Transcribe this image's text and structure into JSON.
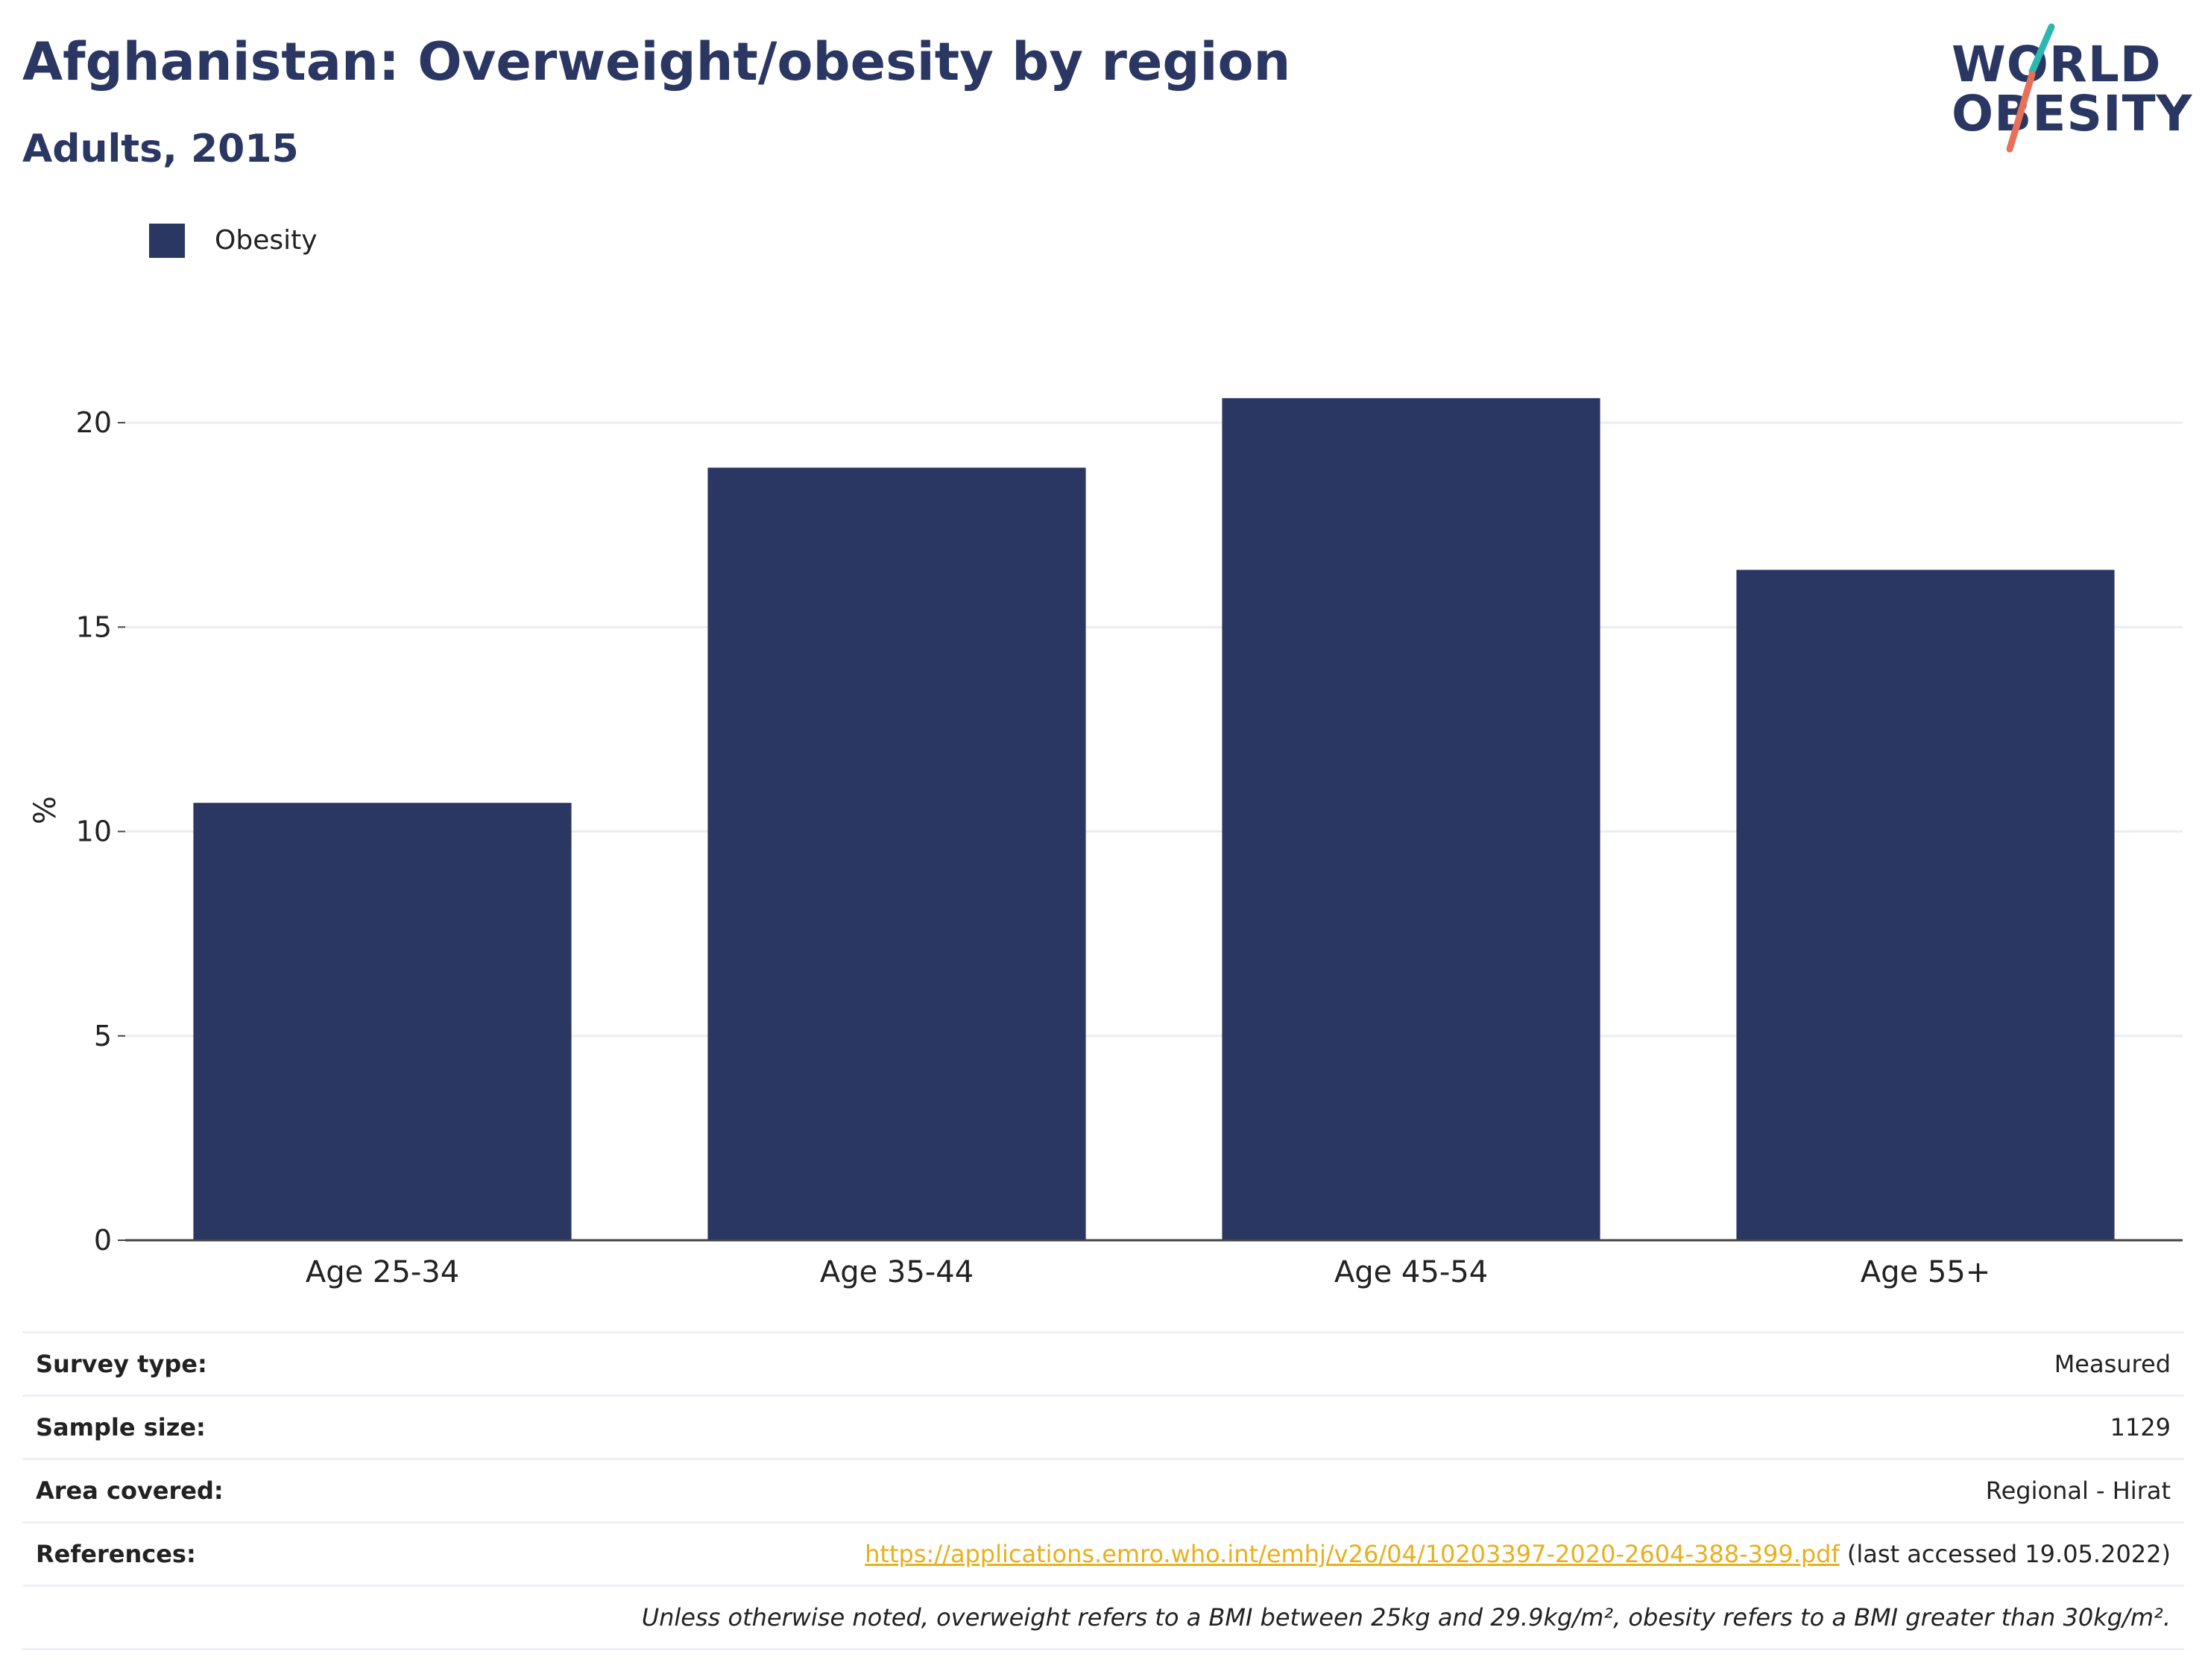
{
  "header": {
    "title": "Afghanistan: Overweight/obesity by region",
    "subtitle": "Adults, 2015"
  },
  "logo": {
    "line1": "WORLD",
    "line2": "OBESITY",
    "colors": {
      "teal": "#2bb8b0",
      "coral": "#e8705a",
      "navy": "#2b3763"
    }
  },
  "legend": {
    "label": "Obesity"
  },
  "chart_data": {
    "type": "bar",
    "categories": [
      "Age 25-34",
      "Age 35-44",
      "Age 45-54",
      "Age 55+"
    ],
    "series": [
      {
        "name": "Obesity",
        "values": [
          10.7,
          18.9,
          20.6,
          16.4
        ],
        "color": "#2b3763"
      }
    ],
    "ylabel": "%",
    "ylim": [
      0,
      22.5
    ],
    "yticks": [
      0,
      5,
      10,
      15,
      20
    ],
    "grid": true,
    "legend_position": "top-left"
  },
  "info": {
    "survey_type_label": "Survey type:",
    "survey_type_value": "Measured",
    "sample_size_label": "Sample size:",
    "sample_size_value": "1129",
    "area_label": "Area covered:",
    "area_value": "Regional - Hirat",
    "references_label": "References:",
    "reference_link": "https://applications.emro.who.int/emhj/v26/04/10203397-2020-2604-388-399.pdf",
    "reference_accessed": " (last accessed 19.05.2022)",
    "note": "Unless otherwise noted, overweight refers to a BMI between 25kg and 29.9kg/m², obesity refers to a BMI greater than 30kg/m²."
  }
}
